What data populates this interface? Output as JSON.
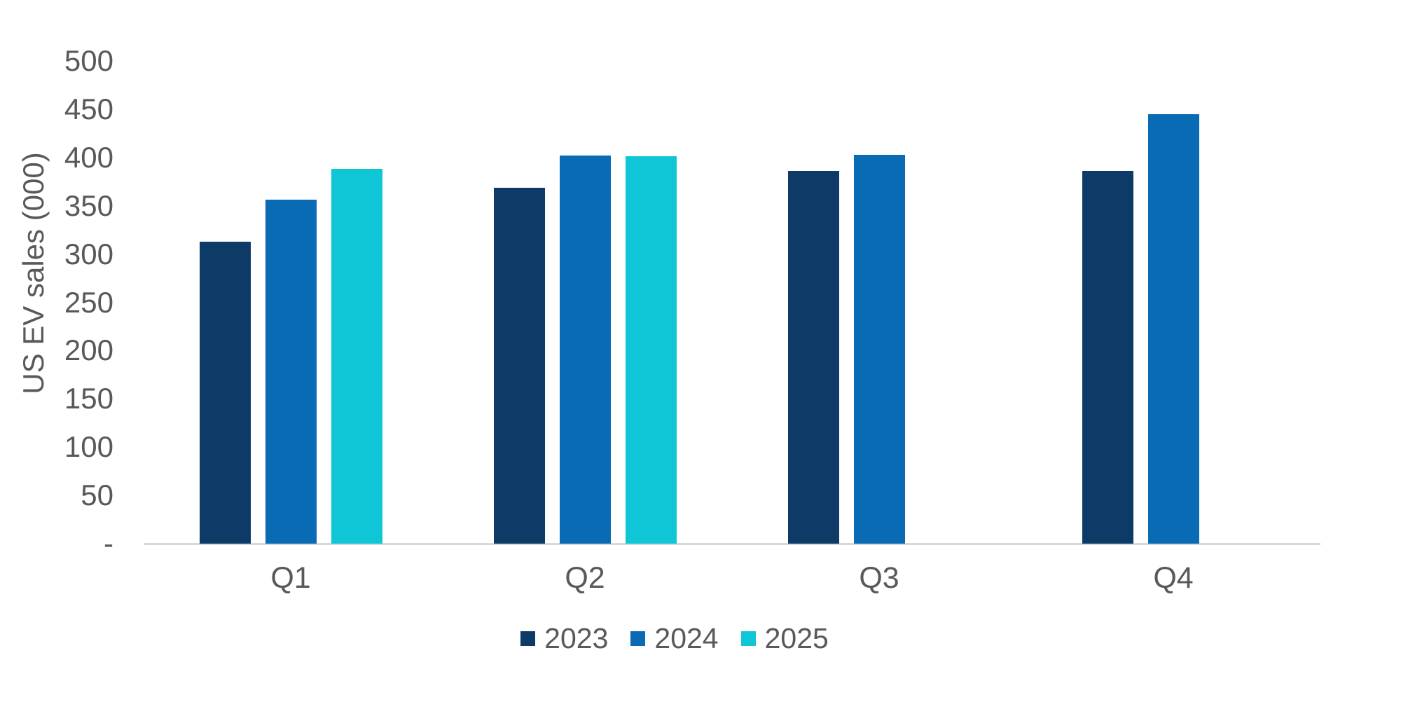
{
  "chart_data": {
    "type": "bar",
    "title": "",
    "ylabel": "US EV sales (000)",
    "xlabel": "",
    "categories": [
      "Q1",
      "Q2",
      "Q3",
      "Q4"
    ],
    "series": [
      {
        "name": "2023",
        "color": "#0D3A66",
        "values": [
          313,
          369,
          386,
          386
        ]
      },
      {
        "name": "2024",
        "color": "#0A6BB5",
        "values": [
          356,
          402,
          403,
          445
        ]
      },
      {
        "name": "2025",
        "color": "#0EC6D5",
        "values": [
          388,
          401,
          null,
          null
        ]
      }
    ],
    "ylim": [
      0,
      500
    ],
    "ytick_step": 50,
    "ytick_labels": [
      "-",
      "50",
      "100",
      "150",
      "200",
      "250",
      "300",
      "350",
      "400",
      "450",
      "500"
    ],
    "grid": false,
    "legend_position": "bottom-center",
    "colors": {
      "axis_line": "#d9d9d9",
      "text": "#595959",
      "background": "#ffffff"
    }
  }
}
